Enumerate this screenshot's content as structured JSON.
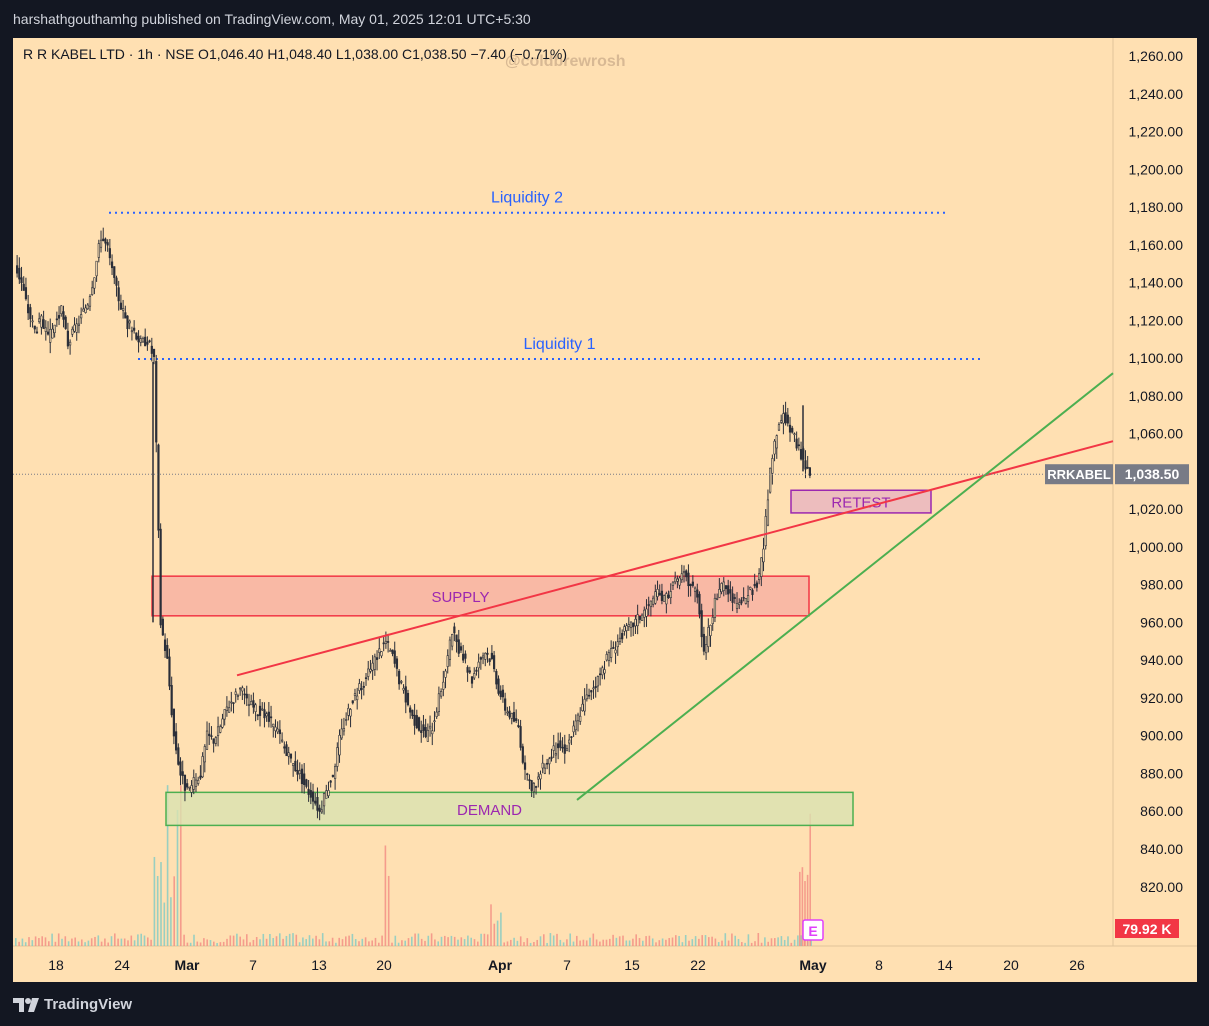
{
  "header": {
    "publisher_line": "harshathgouthamhg published on TradingView.com, May 01, 2025 12:01 UTC+5:30"
  },
  "footer": {
    "brand": "TradingView"
  },
  "colors": {
    "background": "#ffe0b2",
    "page": "#131722",
    "up_candle": "#2a2e39",
    "down_candle": "#2a2e39",
    "axis_text": "#131722",
    "liquidity": "#2962ff",
    "supply_fill": "#f7a8a0",
    "supply_border": "#f23645",
    "demand_fill": "#d9e2b0",
    "demand_border": "#4caf50",
    "retest_fill": "#e8b4c0",
    "retest_border": "#9c27b0",
    "red_trendline": "#f23645",
    "green_trendline": "#4caf50",
    "zone_label": "#9c27b0",
    "price_tag": "#787b86",
    "volume_tag": "#f23645",
    "volume_bar": "#f28b82",
    "volume_bar_up": "#80cbc4"
  },
  "chart_data": {
    "type": "candlestick",
    "symbol_line": "R R KABEL LTD · 1h · NSE  O1,046.40  H1,048.40  L1,038.00  C1,038.50  −7.40 (−0.71%)",
    "watermark": "@coldbrewrosh",
    "y_ticks": [
      "1,260.00",
      "1,240.00",
      "1,220.00",
      "1,200.00",
      "1,180.00",
      "1,160.00",
      "1,140.00",
      "1,120.00",
      "1,100.00",
      "1,080.00",
      "1,060.00",
      "1,040.00",
      "1,020.00",
      "1,000.00",
      "980.00",
      "960.00",
      "940.00",
      "920.00",
      "900.00",
      "880.00",
      "860.00",
      "840.00",
      "820.00"
    ],
    "y_tick_values": [
      1260,
      1240,
      1220,
      1200,
      1180,
      1160,
      1140,
      1120,
      1100,
      1080,
      1060,
      1040,
      1020,
      1000,
      980,
      960,
      940,
      920,
      900,
      880,
      860,
      840,
      820
    ],
    "x_tick_labels": [
      "18",
      "24",
      "Mar",
      "7",
      "13",
      "20",
      "Apr",
      "7",
      "15",
      "22",
      "May",
      "8",
      "14",
      "20",
      "26"
    ],
    "x_tick_bold": [
      false,
      false,
      true,
      false,
      false,
      false,
      true,
      false,
      false,
      false,
      true,
      false,
      false,
      false,
      false
    ],
    "current_price": {
      "symbol": "RRKABEL",
      "value": "1,038.50",
      "price": 1038.5
    },
    "volume_tag": "79.92 K",
    "earnings_marker": "E",
    "annotations": {
      "liquidity_2": {
        "label": "Liquidity 2",
        "price": 1177
      },
      "liquidity_1": {
        "label": "Liquidity 1",
        "price": 1099.5
      },
      "supply": {
        "label": "SUPPLY",
        "top": 984.5,
        "bottom": 963.5
      },
      "demand": {
        "label": "DEMAND",
        "top": 870,
        "bottom": 852.5
      },
      "retest": {
        "label": "RETEST",
        "top": 1030,
        "bottom": 1018
      },
      "red_trendline": {
        "from_price": 932,
        "to_price": 1056
      },
      "green_trendline": {
        "from_price": 866,
        "to_price": 1092
      }
    },
    "price_path": [
      1150,
      1140,
      1125,
      1115,
      1120,
      1110,
      1118,
      1125,
      1108,
      1115,
      1122,
      1130,
      1145,
      1165,
      1158,
      1140,
      1128,
      1118,
      1115,
      1108,
      1110,
      1100,
      960,
      940,
      900,
      880,
      870,
      875,
      880,
      900,
      898,
      905,
      915,
      920,
      925,
      918,
      915,
      912,
      910,
      905,
      900,
      890,
      885,
      880,
      872,
      868,
      860,
      870,
      880,
      898,
      910,
      920,
      925,
      930,
      938,
      945,
      950,
      942,
      930,
      920,
      910,
      905,
      900,
      905,
      920,
      935,
      955,
      945,
      938,
      930,
      940,
      945,
      940,
      925,
      915,
      910,
      905,
      880,
      870,
      878,
      885,
      890,
      895,
      893,
      900,
      910,
      918,
      925,
      930,
      938,
      945,
      950,
      955,
      958,
      962,
      966,
      970,
      975,
      972,
      978,
      982,
      985,
      980,
      976,
      945,
      960,
      975,
      980,
      974,
      968,
      972,
      976,
      980,
      1000,
      1040,
      1060,
      1070,
      1062,
      1055,
      1046,
      1038
    ]
  }
}
